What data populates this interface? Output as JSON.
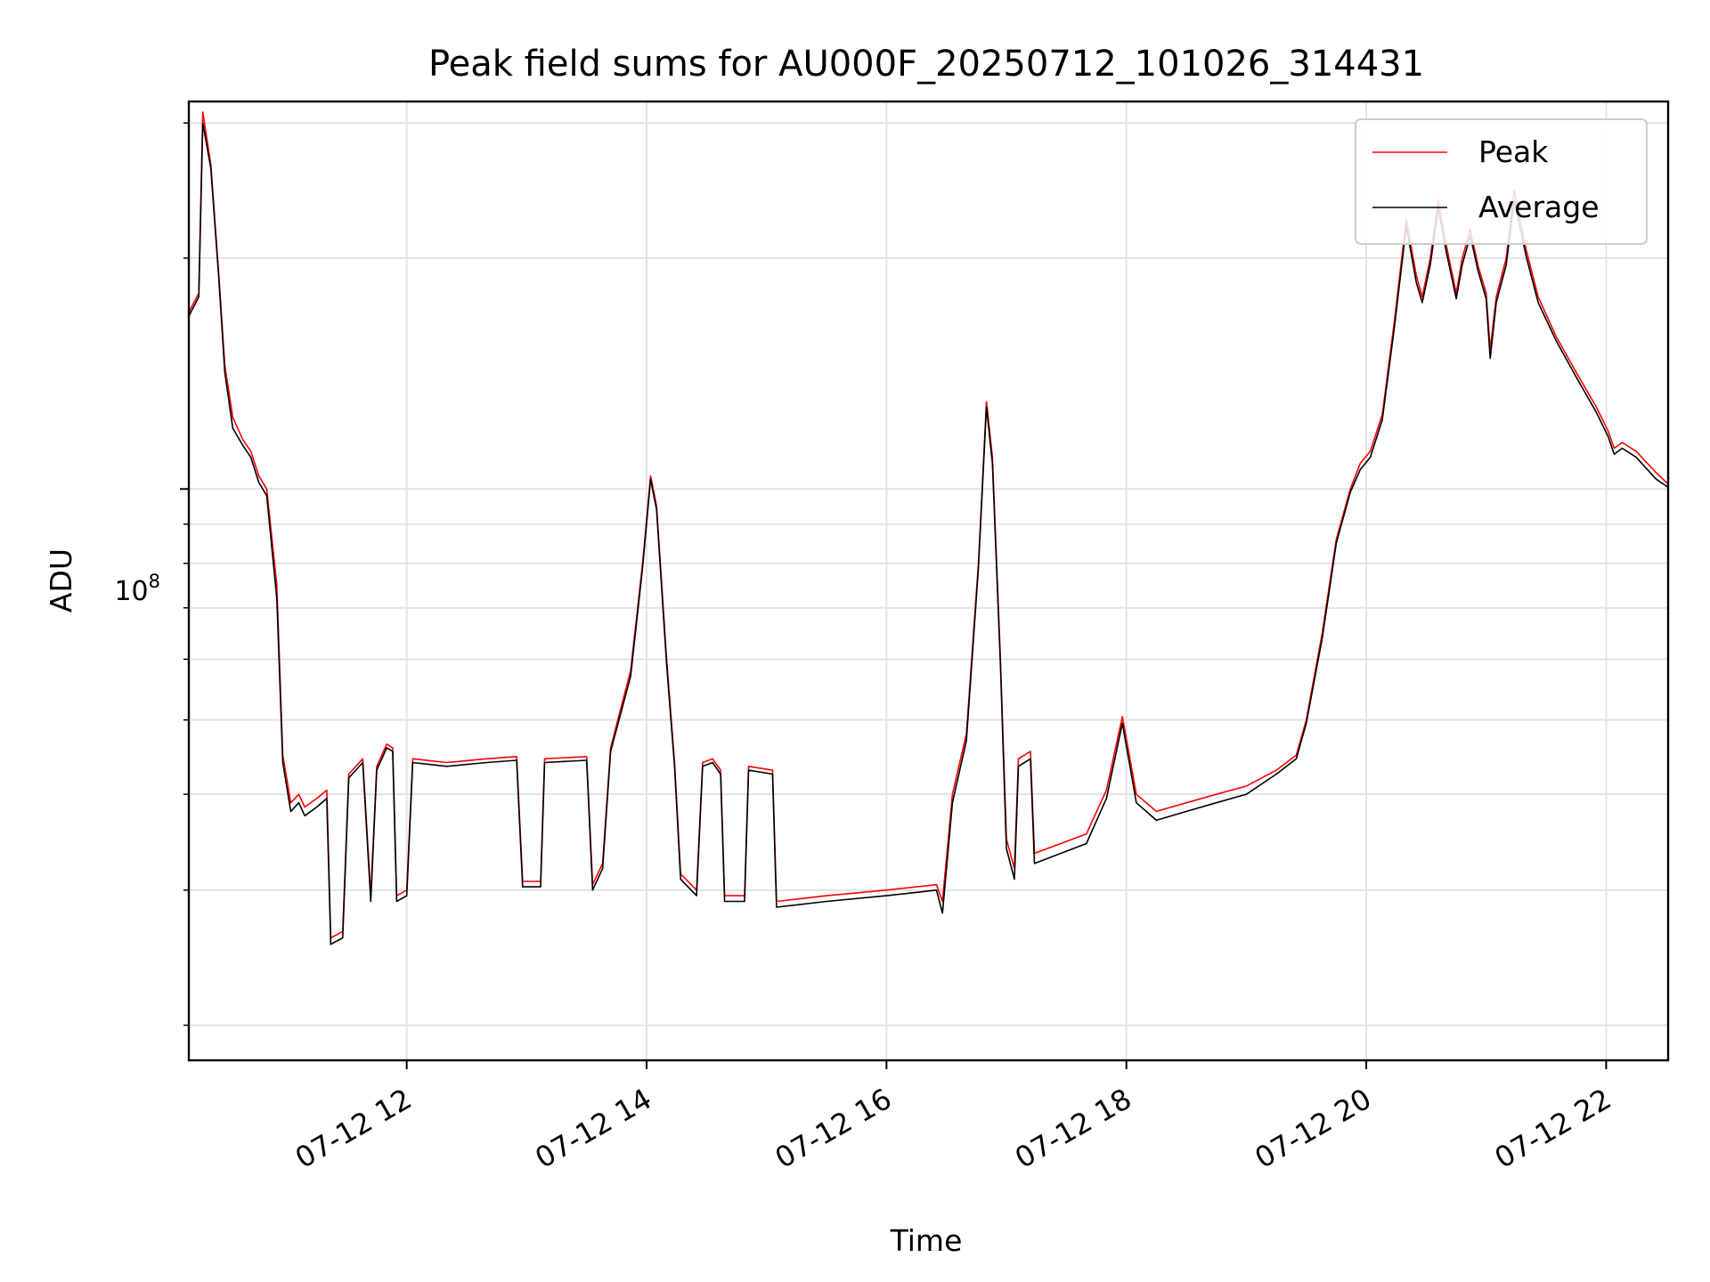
{
  "chart_data": {
    "type": "line",
    "title": "Peak field sums for AU000F_20250712_101026_314431",
    "xlabel": "Time",
    "ylabel": "ADU",
    "y_scale": "log",
    "grid": true,
    "legend_position": "top-right",
    "x_ticks": [
      "07-12 12",
      "07-12 14",
      "07-12 16",
      "07-12 18",
      "07-12 20",
      "07-12 22"
    ],
    "y_major_tick_base": "10",
    "y_major_tick_exponent": "8",
    "xlim": [
      "2025-07-12 10:11",
      "2025-07-12 22:31"
    ],
    "ylim": [
      18000000,
      320000000
    ],
    "series": [
      {
        "name": "Peak",
        "color": "#ff0000",
        "points": [
          [
            "2025-07-12 10:11",
            170000000
          ],
          [
            "2025-07-12 10:16",
            180000000
          ],
          [
            "2025-07-12 10:18",
            310000000
          ],
          [
            "2025-07-12 10:22",
            265000000
          ],
          [
            "2025-07-12 10:26",
            190000000
          ],
          [
            "2025-07-12 10:29",
            145000000
          ],
          [
            "2025-07-12 10:33",
            124000000
          ],
          [
            "2025-07-12 10:38",
            116000000
          ],
          [
            "2025-07-12 10:42",
            112000000
          ],
          [
            "2025-07-12 10:46",
            104000000
          ],
          [
            "2025-07-12 10:50",
            100000000
          ],
          [
            "2025-07-12 10:55",
            75000000
          ],
          [
            "2025-07-12 10:58",
            45000000
          ],
          [
            "2025-07-12 11:02",
            39000000
          ],
          [
            "2025-07-12 11:06",
            40000000
          ],
          [
            "2025-07-12 11:09",
            38500000
          ],
          [
            "2025-07-12 11:15",
            39500000
          ],
          [
            "2025-07-12 11:20",
            40500000
          ],
          [
            "2025-07-12 11:22",
            26000000
          ],
          [
            "2025-07-12 11:28",
            26500000
          ],
          [
            "2025-07-12 11:31",
            42500000
          ],
          [
            "2025-07-12 11:38",
            44500000
          ],
          [
            "2025-07-12 11:42",
            29500000
          ],
          [
            "2025-07-12 11:45",
            43500000
          ],
          [
            "2025-07-12 11:50",
            46500000
          ],
          [
            "2025-07-12 11:53",
            46000000
          ],
          [
            "2025-07-12 11:55",
            29500000
          ],
          [
            "2025-07-12 12:00",
            30000000
          ],
          [
            "2025-07-12 12:03",
            44500000
          ],
          [
            "2025-07-12 12:20",
            44000000
          ],
          [
            "2025-07-12 12:40",
            44500000
          ],
          [
            "2025-07-12 12:55",
            44800000
          ],
          [
            "2025-07-12 12:58",
            30800000
          ],
          [
            "2025-07-12 13:07",
            30800000
          ],
          [
            "2025-07-12 13:09",
            44500000
          ],
          [
            "2025-07-12 13:30",
            44800000
          ],
          [
            "2025-07-12 13:33",
            30500000
          ],
          [
            "2025-07-12 13:38",
            32500000
          ],
          [
            "2025-07-12 13:42",
            46000000
          ],
          [
            "2025-07-12 13:52",
            58000000
          ],
          [
            "2025-07-12 13:58",
            80000000
          ],
          [
            "2025-07-12 14:02",
            104000000
          ],
          [
            "2025-07-12 14:05",
            95000000
          ],
          [
            "2025-07-12 14:10",
            60000000
          ],
          [
            "2025-07-12 14:14",
            44000000
          ],
          [
            "2025-07-12 14:17",
            31500000
          ],
          [
            "2025-07-12 14:25",
            30000000
          ],
          [
            "2025-07-12 14:28",
            44000000
          ],
          [
            "2025-07-12 14:33",
            44500000
          ],
          [
            "2025-07-12 14:37",
            43000000
          ],
          [
            "2025-07-12 14:39",
            29500000
          ],
          [
            "2025-07-12 14:49",
            29500000
          ],
          [
            "2025-07-12 14:51",
            43500000
          ],
          [
            "2025-07-12 15:03",
            43000000
          ],
          [
            "2025-07-12 15:05",
            29000000
          ],
          [
            "2025-07-12 15:30",
            29500000
          ],
          [
            "2025-07-12 16:00",
            30000000
          ],
          [
            "2025-07-12 16:25",
            30500000
          ],
          [
            "2025-07-12 16:28",
            29000000
          ],
          [
            "2025-07-12 16:33",
            40000000
          ],
          [
            "2025-07-12 16:40",
            48000000
          ],
          [
            "2025-07-12 16:46",
            80000000
          ],
          [
            "2025-07-12 16:50",
            130000000
          ],
          [
            "2025-07-12 16:53",
            110000000
          ],
          [
            "2025-07-12 16:57",
            60000000
          ],
          [
            "2025-07-12 17:00",
            35000000
          ],
          [
            "2025-07-12 17:04",
            32000000
          ],
          [
            "2025-07-12 17:06",
            44500000
          ],
          [
            "2025-07-12 17:12",
            45500000
          ],
          [
            "2025-07-12 17:14",
            33500000
          ],
          [
            "2025-07-12 17:40",
            35500000
          ],
          [
            "2025-07-12 17:50",
            40500000
          ],
          [
            "2025-07-12 17:58",
            50500000
          ],
          [
            "2025-07-12 18:05",
            40000000
          ],
          [
            "2025-07-12 18:15",
            38000000
          ],
          [
            "2025-07-12 18:30",
            39000000
          ],
          [
            "2025-07-12 18:45",
            40000000
          ],
          [
            "2025-07-12 19:00",
            41000000
          ],
          [
            "2025-07-12 19:15",
            43000000
          ],
          [
            "2025-07-12 19:25",
            45000000
          ],
          [
            "2025-07-12 19:30",
            50000000
          ],
          [
            "2025-07-12 19:38",
            65000000
          ],
          [
            "2025-07-12 19:45",
            86000000
          ],
          [
            "2025-07-12 19:52",
            100000000
          ],
          [
            "2025-07-12 19:57",
            108000000
          ],
          [
            "2025-07-12 20:02",
            112000000
          ],
          [
            "2025-07-12 20:08",
            125000000
          ],
          [
            "2025-07-12 20:14",
            165000000
          ],
          [
            "2025-07-12 20:20",
            225000000
          ],
          [
            "2025-07-12 20:25",
            190000000
          ],
          [
            "2025-07-12 20:28",
            178000000
          ],
          [
            "2025-07-12 20:32",
            200000000
          ],
          [
            "2025-07-12 20:36",
            238000000
          ],
          [
            "2025-07-12 20:40",
            208000000
          ],
          [
            "2025-07-12 20:45",
            180000000
          ],
          [
            "2025-07-12 20:48",
            200000000
          ],
          [
            "2025-07-12 20:52",
            218000000
          ],
          [
            "2025-07-12 20:56",
            195000000
          ],
          [
            "2025-07-12 21:00",
            180000000
          ],
          [
            "2025-07-12 21:02",
            152000000
          ],
          [
            "2025-07-12 21:05",
            178000000
          ],
          [
            "2025-07-12 21:10",
            200000000
          ],
          [
            "2025-07-12 21:14",
            245000000
          ],
          [
            "2025-07-12 21:20",
            205000000
          ],
          [
            "2025-07-12 21:26",
            178000000
          ],
          [
            "2025-07-12 21:35",
            158000000
          ],
          [
            "2025-07-12 21:45",
            142000000
          ],
          [
            "2025-07-12 21:55",
            128000000
          ],
          [
            "2025-07-12 22:01",
            119000000
          ],
          [
            "2025-07-12 22:04",
            113000000
          ],
          [
            "2025-07-12 22:08",
            115000000
          ],
          [
            "2025-07-12 22:15",
            112000000
          ],
          [
            "2025-07-12 22:25",
            105000000
          ],
          [
            "2025-07-12 22:31",
            101500000
          ]
        ]
      },
      {
        "name": "Average",
        "color": "#000000",
        "points": [
          [
            "2025-07-12 10:11",
            168000000
          ],
          [
            "2025-07-12 10:16",
            178000000
          ],
          [
            "2025-07-12 10:18",
            300000000
          ],
          [
            "2025-07-12 10:22",
            262000000
          ],
          [
            "2025-07-12 10:26",
            188000000
          ],
          [
            "2025-07-12 10:29",
            142000000
          ],
          [
            "2025-07-12 10:33",
            120000000
          ],
          [
            "2025-07-12 10:38",
            114000000
          ],
          [
            "2025-07-12 10:42",
            110000000
          ],
          [
            "2025-07-12 10:46",
            102000000
          ],
          [
            "2025-07-12 10:50",
            98000000
          ],
          [
            "2025-07-12 10:55",
            72000000
          ],
          [
            "2025-07-12 10:58",
            44000000
          ],
          [
            "2025-07-12 11:02",
            38000000
          ],
          [
            "2025-07-12 11:06",
            39000000
          ],
          [
            "2025-07-12 11:09",
            37500000
          ],
          [
            "2025-07-12 11:15",
            38500000
          ],
          [
            "2025-07-12 11:20",
            39500000
          ],
          [
            "2025-07-12 11:22",
            25500000
          ],
          [
            "2025-07-12 11:28",
            26000000
          ],
          [
            "2025-07-12 11:31",
            42000000
          ],
          [
            "2025-07-12 11:38",
            44000000
          ],
          [
            "2025-07-12 11:42",
            29000000
          ],
          [
            "2025-07-12 11:45",
            43000000
          ],
          [
            "2025-07-12 11:50",
            46000000
          ],
          [
            "2025-07-12 11:53",
            45500000
          ],
          [
            "2025-07-12 11:55",
            29000000
          ],
          [
            "2025-07-12 12:00",
            29500000
          ],
          [
            "2025-07-12 12:03",
            44000000
          ],
          [
            "2025-07-12 12:20",
            43500000
          ],
          [
            "2025-07-12 12:40",
            44000000
          ],
          [
            "2025-07-12 12:55",
            44300000
          ],
          [
            "2025-07-12 12:58",
            30300000
          ],
          [
            "2025-07-12 13:07",
            30300000
          ],
          [
            "2025-07-12 13:09",
            44000000
          ],
          [
            "2025-07-12 13:30",
            44300000
          ],
          [
            "2025-07-12 13:33",
            30000000
          ],
          [
            "2025-07-12 13:38",
            32000000
          ],
          [
            "2025-07-12 13:42",
            45500000
          ],
          [
            "2025-07-12 13:52",
            57000000
          ],
          [
            "2025-07-12 13:58",
            79000000
          ],
          [
            "2025-07-12 14:02",
            103000000
          ],
          [
            "2025-07-12 14:05",
            94000000
          ],
          [
            "2025-07-12 14:10",
            59000000
          ],
          [
            "2025-07-12 14:14",
            43500000
          ],
          [
            "2025-07-12 14:17",
            31000000
          ],
          [
            "2025-07-12 14:25",
            29500000
          ],
          [
            "2025-07-12 14:28",
            43500000
          ],
          [
            "2025-07-12 14:33",
            44000000
          ],
          [
            "2025-07-12 14:37",
            42500000
          ],
          [
            "2025-07-12 14:39",
            29000000
          ],
          [
            "2025-07-12 14:49",
            29000000
          ],
          [
            "2025-07-12 14:51",
            43000000
          ],
          [
            "2025-07-12 15:03",
            42500000
          ],
          [
            "2025-07-12 15:05",
            28500000
          ],
          [
            "2025-07-12 15:30",
            29000000
          ],
          [
            "2025-07-12 16:00",
            29500000
          ],
          [
            "2025-07-12 16:25",
            30000000
          ],
          [
            "2025-07-12 16:28",
            28000000
          ],
          [
            "2025-07-12 16:33",
            39000000
          ],
          [
            "2025-07-12 16:40",
            47000000
          ],
          [
            "2025-07-12 16:46",
            79000000
          ],
          [
            "2025-07-12 16:50",
            128000000
          ],
          [
            "2025-07-12 16:53",
            108000000
          ],
          [
            "2025-07-12 16:57",
            59000000
          ],
          [
            "2025-07-12 17:00",
            34000000
          ],
          [
            "2025-07-12 17:04",
            31000000
          ],
          [
            "2025-07-12 17:06",
            43500000
          ],
          [
            "2025-07-12 17:12",
            44500000
          ],
          [
            "2025-07-12 17:14",
            32500000
          ],
          [
            "2025-07-12 17:40",
            34500000
          ],
          [
            "2025-07-12 17:50",
            39500000
          ],
          [
            "2025-07-12 17:58",
            49500000
          ],
          [
            "2025-07-12 18:05",
            39000000
          ],
          [
            "2025-07-12 18:15",
            37000000
          ],
          [
            "2025-07-12 18:30",
            38000000
          ],
          [
            "2025-07-12 18:45",
            39000000
          ],
          [
            "2025-07-12 19:00",
            40000000
          ],
          [
            "2025-07-12 19:15",
            42500000
          ],
          [
            "2025-07-12 19:25",
            44500000
          ],
          [
            "2025-07-12 19:30",
            49500000
          ],
          [
            "2025-07-12 19:38",
            64000000
          ],
          [
            "2025-07-12 19:45",
            85000000
          ],
          [
            "2025-07-12 19:52",
            99000000
          ],
          [
            "2025-07-12 19:57",
            106000000
          ],
          [
            "2025-07-12 20:02",
            110000000
          ],
          [
            "2025-07-12 20:08",
            123000000
          ],
          [
            "2025-07-12 20:14",
            162000000
          ],
          [
            "2025-07-12 20:20",
            220000000
          ],
          [
            "2025-07-12 20:25",
            186000000
          ],
          [
            "2025-07-12 20:28",
            175000000
          ],
          [
            "2025-07-12 20:32",
            196000000
          ],
          [
            "2025-07-12 20:36",
            232000000
          ],
          [
            "2025-07-12 20:40",
            204000000
          ],
          [
            "2025-07-12 20:45",
            177000000
          ],
          [
            "2025-07-12 20:48",
            196000000
          ],
          [
            "2025-07-12 20:52",
            214000000
          ],
          [
            "2025-07-12 20:56",
            192000000
          ],
          [
            "2025-07-12 21:00",
            177000000
          ],
          [
            "2025-07-12 21:02",
            148000000
          ],
          [
            "2025-07-12 21:05",
            175000000
          ],
          [
            "2025-07-12 21:10",
            196000000
          ],
          [
            "2025-07-12 21:14",
            238000000
          ],
          [
            "2025-07-12 21:20",
            201000000
          ],
          [
            "2025-07-12 21:26",
            175000000
          ],
          [
            "2025-07-12 21:35",
            156000000
          ],
          [
            "2025-07-12 21:45",
            140000000
          ],
          [
            "2025-07-12 21:55",
            126000000
          ],
          [
            "2025-07-12 22:01",
            117000000
          ],
          [
            "2025-07-12 22:04",
            111000000
          ],
          [
            "2025-07-12 22:08",
            113000000
          ],
          [
            "2025-07-12 22:15",
            110000000
          ],
          [
            "2025-07-12 22:25",
            103000000
          ],
          [
            "2025-07-12 22:31",
            100500000
          ]
        ]
      }
    ]
  }
}
